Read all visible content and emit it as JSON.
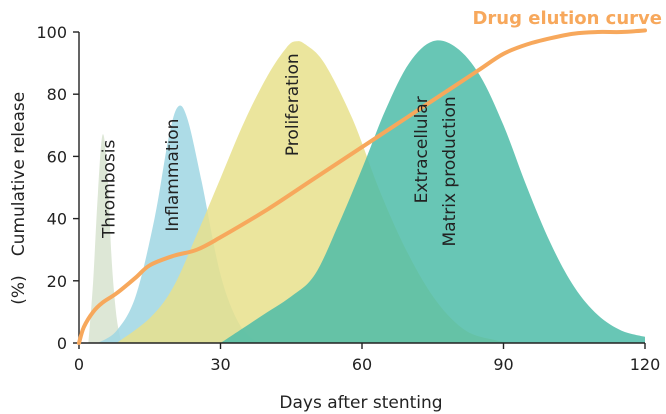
{
  "chart_data": {
    "type": "area",
    "xlabel": "Days after stenting",
    "ylabel_line1": "Cumulative release",
    "ylabel_line2": "(%)",
    "xlim": [
      0,
      120
    ],
    "ylim": [
      0,
      100
    ],
    "x_ticks": [
      0,
      30,
      60,
      90,
      120
    ],
    "y_ticks": [
      0,
      20,
      40,
      60,
      80,
      100
    ],
    "grid": false,
    "phases": [
      {
        "label": "Thrombosis",
        "color": "#d7e3cf",
        "x": [
          2,
          3,
          4,
          5,
          6,
          7,
          8,
          9
        ],
        "y": [
          0,
          20,
          48,
          67,
          55,
          25,
          8,
          0
        ]
      },
      {
        "label": "Inflammation",
        "color": "#9fd6e3",
        "x": [
          4,
          8,
          12,
          16,
          19,
          21,
          23,
          26,
          30,
          34,
          38
        ],
        "y": [
          0,
          4,
          15,
          40,
          66,
          76,
          72,
          52,
          22,
          6,
          0
        ]
      },
      {
        "label": "Proliferation",
        "color": "#e8e18c",
        "x": [
          8,
          15,
          20,
          25,
          30,
          35,
          40,
          44,
          46,
          48,
          52,
          58,
          64,
          70,
          76,
          82,
          88,
          92
        ],
        "y": [
          0,
          8,
          18,
          35,
          53,
          71,
          86,
          95,
          97,
          96,
          90,
          72,
          48,
          28,
          13,
          4,
          1,
          0
        ],
        "label_lines": [
          "Proliferation"
        ]
      },
      {
        "label": "Extracellular Matrix production",
        "color": "#4dbca8",
        "x": [
          30,
          38,
          45,
          50,
          55,
          60,
          65,
          70,
          75,
          80,
          85,
          90,
          95,
          100,
          105,
          110,
          115,
          120
        ],
        "y": [
          0,
          8,
          15,
          22,
          38,
          56,
          75,
          90,
          97,
          95,
          86,
          70,
          50,
          32,
          18,
          9,
          4,
          2
        ],
        "label_lines": [
          "Extracellular",
          "Matrix production"
        ]
      }
    ],
    "series": [
      {
        "name": "Drug elution curve",
        "color": "#f7a85c",
        "x": [
          0,
          1,
          3,
          5,
          8,
          12,
          15,
          20,
          25,
          30,
          40,
          50,
          60,
          70,
          80,
          85,
          90,
          95,
          100,
          105,
          110,
          115,
          120
        ],
        "y": [
          0,
          5,
          10,
          13,
          16,
          21,
          25,
          28,
          30,
          34,
          43,
          53,
          63,
          73,
          83,
          88,
          93,
          96,
          98,
          99.5,
          100,
          100,
          100.5
        ]
      }
    ]
  }
}
